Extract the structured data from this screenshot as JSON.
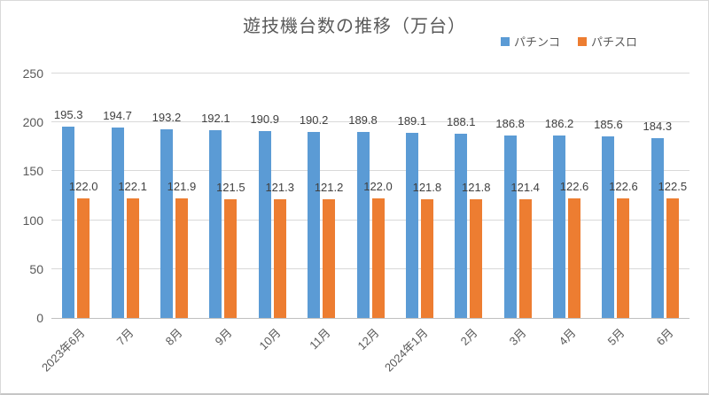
{
  "title": "遊技機台数の推移（万台）",
  "colors": {
    "pachinko_blue": "#5B9BD5",
    "pachislot_orange": "#ED7D31",
    "title_text": "#595959",
    "axis_text": "#595959",
    "data_label_text": "#404040",
    "gridline": "#D9D9D9"
  },
  "legend": {
    "position": "top-right",
    "items": [
      {
        "label": "パチンコ",
        "color": "#5B9BD5"
      },
      {
        "label": "パチスロ",
        "color": "#ED7D31"
      }
    ]
  },
  "chart_data": {
    "type": "bar",
    "title": "遊技機台数の推移（万台）",
    "categories": [
      "2023年6月",
      "7月",
      "8月",
      "9月",
      "10月",
      "11月",
      "12月",
      "2024年1月",
      "2月",
      "3月",
      "4月",
      "5月",
      "6月"
    ],
    "series": [
      {
        "name": "パチンコ",
        "key": "pachinko",
        "color": "#5B9BD5",
        "values": [
          195.3,
          194.7,
          193.2,
          192.1,
          190.9,
          190.2,
          189.8,
          189.1,
          188.1,
          186.8,
          186.2,
          185.6,
          184.3
        ]
      },
      {
        "name": "パチスロ",
        "key": "pachislot",
        "color": "#ED7D31",
        "values": [
          122.0,
          122.1,
          121.9,
          121.5,
          121.3,
          121.2,
          122.0,
          121.8,
          121.8,
          121.4,
          122.6,
          122.6,
          122.5
        ]
      }
    ],
    "xlabel": "",
    "ylabel": "",
    "ylim": [
      0,
      250
    ],
    "yticks": [
      0,
      50,
      100,
      150,
      200,
      250
    ],
    "grid": true,
    "data_labels": true,
    "data_label_decimals": 1,
    "legend_position": "top-right"
  }
}
